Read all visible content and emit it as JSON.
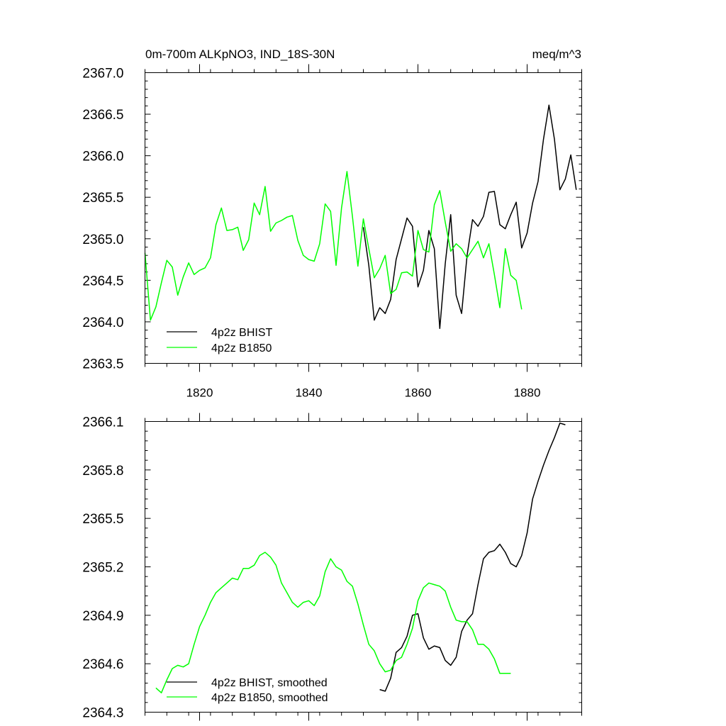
{
  "chart_data": [
    {
      "type": "line",
      "title_left": "0m-700m ALKpNO3, IND_18S-30N",
      "title_right": "meq/m^3",
      "xlim": [
        1810,
        1890
      ],
      "ylim": [
        2363.5,
        2367.0
      ],
      "x_ticks": [
        1820,
        1840,
        1860,
        1880
      ],
      "x_tick_labels": [
        "1820",
        "1840",
        "1860",
        "1880"
      ],
      "y_ticks": [
        2363.5,
        2364.0,
        2364.5,
        2365.0,
        2365.5,
        2366.0,
        2366.5,
        2367.0
      ],
      "y_tick_labels": [
        "2363.5",
        "2364.0",
        "2364.5",
        "2365.0",
        "2365.5",
        "2366.0",
        "2366.5",
        "2367.0"
      ],
      "legend_position": "bottom-left",
      "series": [
        {
          "name": "4p2z BHIST",
          "color": "#000000",
          "x": [
            1850,
            1851,
            1852,
            1853,
            1854,
            1855,
            1856,
            1857,
            1858,
            1859,
            1860,
            1861,
            1862,
            1863,
            1864,
            1865,
            1866,
            1867,
            1868,
            1869,
            1870,
            1871,
            1872,
            1873,
            1874,
            1875,
            1876,
            1877,
            1878,
            1879,
            1880,
            1881,
            1882,
            1883,
            1884,
            1885,
            1886,
            1887,
            1888,
            1889
          ],
          "y": [
            2365.14,
            2364.68,
            2364.02,
            2364.17,
            2364.1,
            2364.27,
            2364.75,
            2365.0,
            2365.25,
            2365.15,
            2364.42,
            2364.62,
            2365.1,
            2364.88,
            2363.92,
            2364.7,
            2365.29,
            2364.32,
            2364.1,
            2364.8,
            2365.23,
            2365.15,
            2365.27,
            2365.56,
            2365.57,
            2365.17,
            2365.12,
            2365.29,
            2365.44,
            2364.89,
            2365.07,
            2365.43,
            2365.69,
            2366.2,
            2366.61,
            2366.2,
            2365.59,
            2365.72,
            2366.01,
            2365.59
          ]
        },
        {
          "name": "4p2z B1850",
          "color": "#00ff00",
          "x": [
            1810,
            1811,
            1812,
            1813,
            1814,
            1815,
            1816,
            1817,
            1818,
            1819,
            1820,
            1821,
            1822,
            1823,
            1824,
            1825,
            1826,
            1827,
            1828,
            1829,
            1830,
            1831,
            1832,
            1833,
            1834,
            1835,
            1836,
            1837,
            1838,
            1839,
            1840,
            1841,
            1842,
            1843,
            1844,
            1845,
            1846,
            1847,
            1848,
            1849,
            1850,
            1851,
            1852,
            1853,
            1854,
            1855,
            1856,
            1857,
            1858,
            1859,
            1860,
            1861,
            1862,
            1863,
            1864,
            1865,
            1866,
            1867,
            1868,
            1869,
            1870,
            1871,
            1872,
            1873,
            1874,
            1875,
            1876,
            1877,
            1878,
            1879
          ],
          "y": [
            2364.83,
            2364.02,
            2364.18,
            2364.47,
            2364.74,
            2364.66,
            2364.32,
            2364.54,
            2364.71,
            2364.57,
            2364.62,
            2364.65,
            2364.77,
            2365.17,
            2365.37,
            2365.1,
            2365.11,
            2365.14,
            2364.86,
            2364.99,
            2365.43,
            2365.29,
            2365.63,
            2365.09,
            2365.19,
            2365.22,
            2365.26,
            2365.28,
            2364.98,
            2364.8,
            2364.75,
            2364.73,
            2364.94,
            2365.42,
            2365.33,
            2364.68,
            2365.37,
            2365.81,
            2365.27,
            2364.67,
            2365.24,
            2364.88,
            2364.53,
            2364.64,
            2364.8,
            2364.34,
            2364.39,
            2364.59,
            2364.6,
            2364.55,
            2365.1,
            2364.87,
            2364.84,
            2365.41,
            2365.58,
            2365.2,
            2364.85,
            2364.94,
            2364.88,
            2364.77,
            2364.87,
            2364.97,
            2364.77,
            2364.94,
            2364.57,
            2364.17,
            2364.88,
            2364.56,
            2364.5,
            2364.15
          ]
        }
      ]
    },
    {
      "type": "line",
      "xlim": [
        1810,
        1890
      ],
      "ylim": [
        2364.3,
        2366.1
      ],
      "x_ticks": [
        1820,
        1840,
        1860,
        1880
      ],
      "y_ticks": [
        2364.3,
        2364.6,
        2364.9,
        2365.2,
        2365.5,
        2365.8,
        2366.1
      ],
      "y_tick_labels": [
        "2364.3",
        "2364.6",
        "2364.9",
        "2365.2",
        "2365.5",
        "2365.8",
        "2366.1"
      ],
      "legend_position": "bottom-left",
      "series": [
        {
          "name": "4p2z BHIST, smoothed",
          "color": "#000000",
          "x": [
            1853,
            1854,
            1855,
            1856,
            1857,
            1858,
            1859,
            1860,
            1861,
            1862,
            1863,
            1864,
            1865,
            1866,
            1867,
            1868,
            1869,
            1870,
            1871,
            1872,
            1873,
            1874,
            1875,
            1876,
            1877,
            1878,
            1879,
            1880,
            1881,
            1882,
            1883,
            1884,
            1885,
            1886,
            1887
          ],
          "y": [
            2364.44,
            2364.43,
            2364.51,
            2364.67,
            2364.7,
            2364.77,
            2364.9,
            2364.91,
            2364.76,
            2364.69,
            2364.71,
            2364.7,
            2364.62,
            2364.59,
            2364.64,
            2364.8,
            2364.87,
            2364.91,
            2365.09,
            2365.25,
            2365.29,
            2365.3,
            2365.34,
            2365.29,
            2365.22,
            2365.2,
            2365.27,
            2365.41,
            2365.62,
            2365.73,
            2365.83,
            2365.92,
            2366.0,
            2366.09,
            2366.08
          ]
        },
        {
          "name": "4p2z B1850, smoothed",
          "color": "#00ff00",
          "x": [
            1812,
            1813,
            1814,
            1815,
            1816,
            1817,
            1818,
            1819,
            1820,
            1821,
            1822,
            1823,
            1824,
            1825,
            1826,
            1827,
            1828,
            1829,
            1830,
            1831,
            1832,
            1833,
            1834,
            1835,
            1836,
            1837,
            1838,
            1839,
            1840,
            1841,
            1842,
            1843,
            1844,
            1845,
            1846,
            1847,
            1848,
            1849,
            1850,
            1851,
            1852,
            1853,
            1854,
            1855,
            1856,
            1857,
            1858,
            1859,
            1860,
            1861,
            1862,
            1863,
            1864,
            1865,
            1866,
            1867,
            1868,
            1869,
            1870,
            1871,
            1872,
            1873,
            1874,
            1875,
            1876,
            1877
          ],
          "y": [
            2364.45,
            2364.42,
            2364.5,
            2364.57,
            2364.59,
            2364.58,
            2364.6,
            2364.72,
            2364.83,
            2364.9,
            2364.98,
            2365.04,
            2365.07,
            2365.1,
            2365.13,
            2365.12,
            2365.19,
            2365.19,
            2365.21,
            2365.27,
            2365.29,
            2365.26,
            2365.21,
            2365.1,
            2365.04,
            2364.98,
            2364.95,
            2364.98,
            2364.99,
            2364.96,
            2365.02,
            2365.17,
            2365.25,
            2365.2,
            2365.18,
            2365.11,
            2365.08,
            2364.97,
            2364.84,
            2364.72,
            2364.68,
            2364.6,
            2364.55,
            2364.56,
            2364.62,
            2364.64,
            2364.72,
            2364.82,
            2364.99,
            2365.07,
            2365.1,
            2365.09,
            2365.08,
            2365.05,
            2364.95,
            2364.87,
            2364.86,
            2364.86,
            2364.81,
            2364.72,
            2364.72,
            2364.69,
            2364.63,
            2364.54,
            2364.54,
            2364.54
          ]
        }
      ]
    }
  ]
}
